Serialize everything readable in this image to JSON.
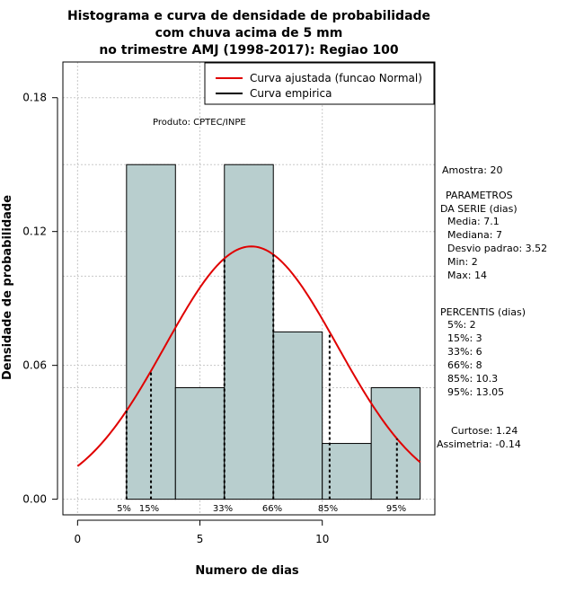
{
  "chart_data": {
    "type": "bar",
    "title_lines": [
      "Histograma e curva de densidade de probabilidade",
      "com chuva acima de 5 mm",
      "no trimestre AMJ (1998-2017): Regiao 100"
    ],
    "xlabel": "Numero de dias",
    "ylabel": "Densidade de probabilidade",
    "xlim": [
      -0.6,
      14.6
    ],
    "ylim": [
      -0.007,
      0.196
    ],
    "x_ticks": [
      0,
      5,
      10
    ],
    "y_ticks": [
      0.0,
      0.06,
      0.12,
      0.18
    ],
    "y_tick_labels": [
      "0.00",
      "0.06",
      "0.12",
      "0.18"
    ],
    "bins": [
      {
        "start": 2,
        "end": 4,
        "density": 0.15
      },
      {
        "start": 4,
        "end": 6,
        "density": 0.05
      },
      {
        "start": 6,
        "end": 8,
        "density": 0.15
      },
      {
        "start": 8,
        "end": 10,
        "density": 0.075
      },
      {
        "start": 10,
        "end": 12,
        "density": 0.025
      },
      {
        "start": 12,
        "end": 14,
        "density": 0.05
      }
    ],
    "bar_color": "#b8cece",
    "curve": {
      "name": "Curva ajustada (funcao Normal)",
      "mean": 7.1,
      "sd": 3.52,
      "x_range": [
        0,
        14
      ],
      "color": "#e00000"
    },
    "empirical": {
      "name": "Curva empirica",
      "color": "#000000"
    },
    "percentile_lines": [
      {
        "label": "5%",
        "x": 2
      },
      {
        "label": "15%",
        "x": 3
      },
      {
        "label": "33%",
        "x": 6
      },
      {
        "label": "66%",
        "x": 8
      },
      {
        "label": "85%",
        "x": 10.3
      },
      {
        "label": "95%",
        "x": 13.05
      }
    ],
    "legend_position": "top-right",
    "annotation": "Produto: CPTEC/INPE",
    "stats": {
      "amostra": "Amostra: 20",
      "param_header": "PARAMETROS",
      "param_sub": "DA SERIE (dias)",
      "params": [
        "Media: 7.1",
        "Mediana: 7",
        "Desvio padrao: 3.52",
        "Min: 2",
        "Max: 14"
      ],
      "perc_header": "PERCENTIS (dias)",
      "percentis": [
        "5%: 2",
        "15%: 3",
        "33%: 6",
        "66%: 8",
        "85%: 10.3",
        "95%: 13.05"
      ],
      "curtose": "Curtose: 1.24",
      "assimetria": "Assimetria: -0.14"
    }
  }
}
